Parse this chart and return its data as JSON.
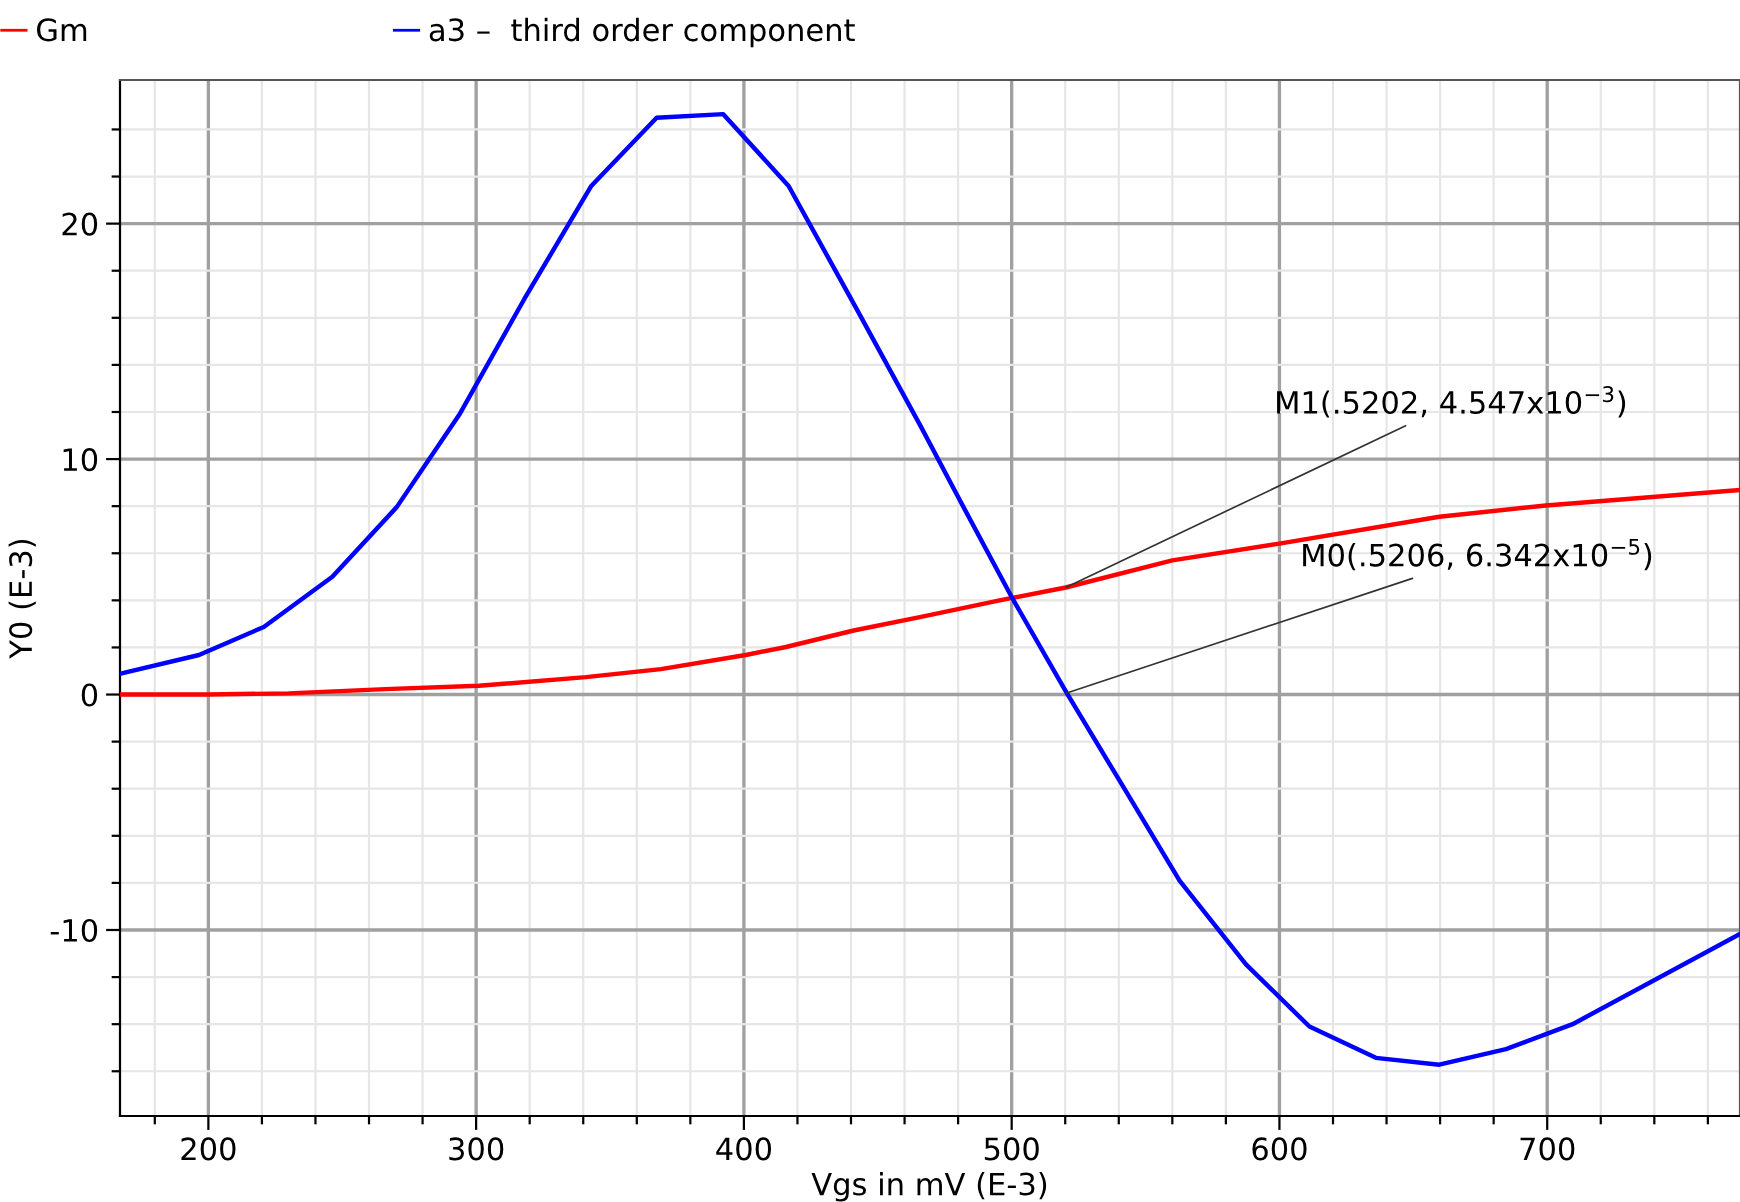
{
  "chart_data": {
    "type": "line",
    "xlabel": "Vgs in mV (E-3)",
    "ylabel": "Y0 (E-3)",
    "series": [
      {
        "name": "Gm",
        "color": "#ff0000",
        "x": [
          167,
          200,
          230,
          266,
          301,
          341,
          369,
          400.7,
          415.7,
          441,
          465.7,
          495.5,
          520.2,
          560,
          600,
          659.7,
          699.5,
          771.6
        ],
        "values": [
          0.0,
          0.0,
          0.05,
          0.23,
          0.37,
          0.74,
          1.08,
          1.68,
          2.02,
          2.72,
          3.29,
          4.0,
          4.547,
          5.7,
          6.41,
          7.55,
          8.03,
          8.68
        ]
      },
      {
        "name": "a3 –  third order component",
        "color": "#0000ff",
        "x": [
          167,
          196.5,
          220.7,
          246.3,
          270.4,
          294,
          318,
          343,
          367.4,
          392.3,
          416.7,
          441,
          466,
          480.6,
          500,
          520.6,
          540.3,
          562.7,
          587.5,
          611.2,
          636,
          659.7,
          684.6,
          709.5,
          771.6
        ],
        "values": [
          0.88,
          1.68,
          2.87,
          5.0,
          7.97,
          11.94,
          16.8,
          21.6,
          24.5,
          24.65,
          21.6,
          16.6,
          11.4,
          8.26,
          4.14,
          0.06342,
          -3.66,
          -7.9,
          -11.46,
          -14.1,
          -15.43,
          -15.72,
          -15.06,
          -14.0,
          -10.19
        ]
      }
    ],
    "xlim": [
      167,
      772
    ],
    "ylim": [
      -17.9,
      26.1
    ],
    "xticks": [
      {
        "value": 180,
        "label": null
      },
      200,
      {
        "value": 220,
        "label": null
      },
      {
        "value": 240,
        "label": null
      },
      {
        "value": 260,
        "label": null
      },
      {
        "value": 280,
        "label": null
      },
      300,
      {
        "value": 320,
        "label": null
      },
      {
        "value": 340,
        "label": null
      },
      {
        "value": 360,
        "label": null
      },
      {
        "value": 380,
        "label": null
      },
      400,
      {
        "value": 420,
        "label": null
      },
      {
        "value": 440,
        "label": null
      },
      {
        "value": 460,
        "label": null
      },
      {
        "value": 480,
        "label": null
      },
      500,
      {
        "value": 520,
        "label": null
      },
      {
        "value": 540,
        "label": null
      },
      {
        "value": 560,
        "label": null
      },
      {
        "value": 580,
        "label": null
      },
      600,
      {
        "value": 620,
        "label": null
      },
      {
        "value": 640,
        "label": null
      },
      {
        "value": 660,
        "label": null
      },
      {
        "value": 680,
        "label": null
      },
      700,
      {
        "value": 720,
        "label": null
      },
      {
        "value": 740,
        "label": null
      },
      {
        "value": 760,
        "label": null
      }
    ],
    "yticks": [
      {
        "value": -16,
        "label": null
      },
      {
        "value": -14,
        "label": null
      },
      {
        "value": -12,
        "label": null
      },
      -10,
      {
        "value": -8,
        "label": null
      },
      {
        "value": -6,
        "label": null
      },
      {
        "value": -4,
        "label": null
      },
      {
        "value": -2,
        "label": null
      },
      0,
      {
        "value": 2,
        "label": null
      },
      {
        "value": 4,
        "label": null
      },
      {
        "value": 6,
        "label": null
      },
      {
        "value": 8,
        "label": null
      },
      10,
      {
        "value": 12,
        "label": null
      },
      {
        "value": 14,
        "label": null
      },
      {
        "value": 16,
        "label": null
      },
      {
        "value": 18,
        "label": null
      },
      20,
      {
        "value": 22,
        "label": null
      },
      {
        "value": 24,
        "label": null
      }
    ],
    "annotations": [
      {
        "text": "M1(.5202, 4.547x10$^{−3}$)",
        "x": 520.2,
        "y": 4.547
      },
      {
        "text": "M0(.5206, 6.342x10$^{−5}$)",
        "x": 520.6,
        "y": 0.06342
      }
    ],
    "grid": true,
    "legend": "top",
    "marker": "none",
    "line_style": "solid"
  }
}
